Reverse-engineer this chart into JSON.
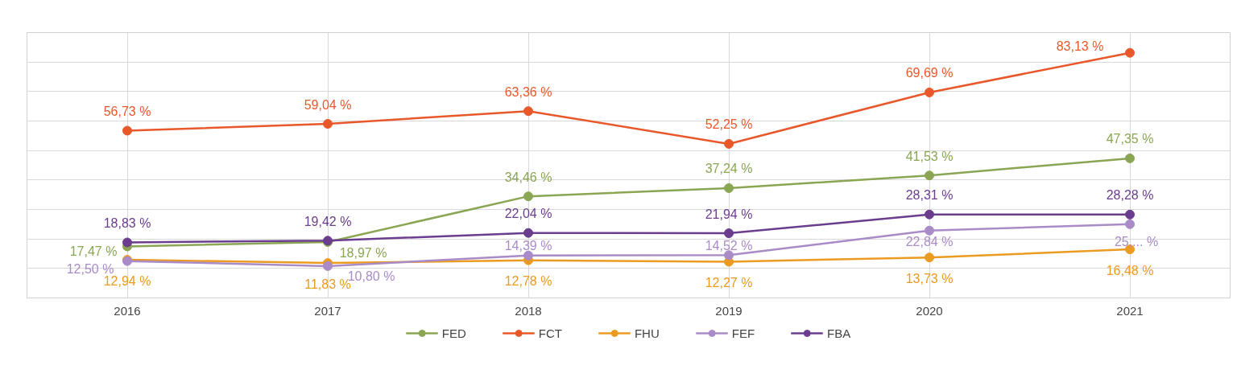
{
  "chart_data": {
    "type": "line",
    "categories": [
      "2016",
      "2017",
      "2018",
      "2019",
      "2020",
      "2021"
    ],
    "series": [
      {
        "name": "FED",
        "color": "#8aa652",
        "values": [
          17.47,
          18.97,
          34.46,
          37.24,
          41.53,
          47.35
        ],
        "value_labels": [
          "17,47 %",
          "18,97 %",
          "34,46 %",
          "37,24 %",
          "41,53 %",
          "47,35 %"
        ]
      },
      {
        "name": "FCT",
        "color": "#e8582a",
        "values": [
          56.73,
          59.04,
          63.36,
          52.25,
          69.69,
          83.13
        ],
        "value_labels": [
          "56,73 %",
          "59,04 %",
          "63,36 %",
          "52,25 %",
          "69,69 %",
          "83,13 %"
        ]
      },
      {
        "name": "FHU",
        "color": "#eb9b22",
        "values": [
          12.94,
          11.83,
          12.78,
          12.27,
          13.73,
          16.48
        ],
        "value_labels": [
          "12,94 %",
          "11,83 %",
          "12,78 %",
          "12,27 %",
          "13,73 %",
          "16,48 %"
        ]
      },
      {
        "name": "FEF",
        "color": "#a98bc8",
        "values": [
          12.5,
          10.8,
          14.39,
          14.52,
          22.84,
          25
        ],
        "value_labels": [
          "12,50 %",
          "10,80 %",
          "14,39 %",
          "14,52 %",
          "22,84 %",
          "25,... %"
        ]
      },
      {
        "name": "FBA",
        "color": "#6b3d8f",
        "values": [
          18.83,
          19.42,
          22.04,
          21.94,
          28.31,
          28.28
        ],
        "value_labels": [
          "18,83 %",
          "19,42 %",
          "22,04 %",
          "21,94 %",
          "28,31 %",
          "28,28 %"
        ]
      }
    ],
    "ylim": [
      0,
      90
    ],
    "yticks": [
      {
        "value": 0,
        "label": null
      },
      {
        "value": 10,
        "label": null
      },
      {
        "value": 20,
        "label": null
      },
      {
        "value": 30,
        "label": null
      },
      {
        "value": 40,
        "label": null
      },
      {
        "value": 50,
        "label": null
      },
      {
        "value": 60,
        "label": null
      },
      {
        "value": 70,
        "label": null
      },
      {
        "value": 80,
        "label": null
      },
      {
        "value": 90,
        "label": null
      }
    ],
    "tick_labels": "x",
    "grid": true,
    "legend": "bottom",
    "marker": "circle",
    "line_style": "solid"
  }
}
